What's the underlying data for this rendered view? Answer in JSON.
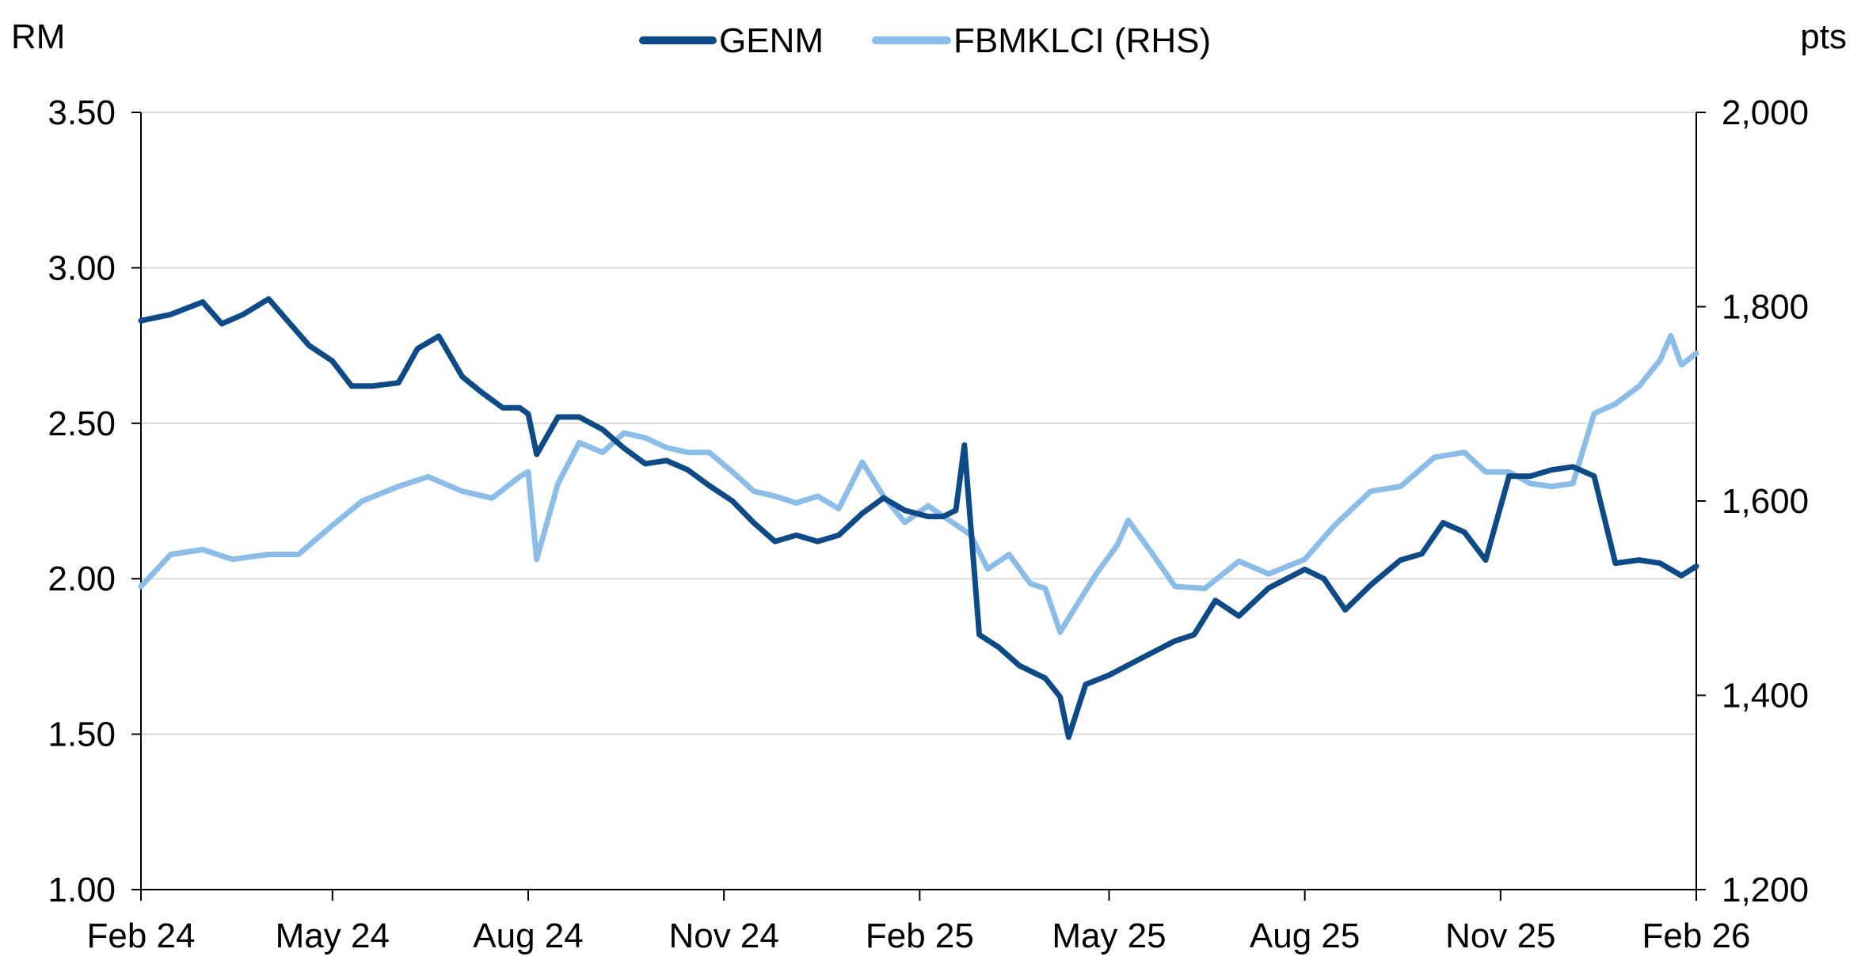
{
  "chart_data": {
    "type": "line",
    "left_axis": {
      "unit": "RM",
      "ylim": [
        1.0,
        3.5
      ],
      "ticks": [
        "1.00",
        "1.50",
        "2.00",
        "2.50",
        "3.00",
        "3.50"
      ]
    },
    "right_axis": {
      "unit": "pts",
      "ylim": [
        1200,
        2000
      ],
      "ticks": [
        "1,200",
        "1,400",
        "1,600",
        "1,800",
        "2,000"
      ]
    },
    "x_tick_labels": [
      "Feb 24",
      "May 24",
      "Aug 24",
      "Nov 24",
      "Feb 25",
      "May 25",
      "Aug 25",
      "Nov 25",
      "Feb 26"
    ],
    "grid": "horizontal",
    "legend_position": "top",
    "series": [
      {
        "name": "GENM",
        "axis": "left",
        "color": "#0e4a86",
        "x": [
          "2024-02-01",
          "2024-02-15",
          "2024-03-01",
          "2024-03-10",
          "2024-03-20",
          "2024-04-01",
          "2024-04-20",
          "2024-05-01",
          "2024-05-10",
          "2024-05-20",
          "2024-06-01",
          "2024-06-10",
          "2024-06-20",
          "2024-07-01",
          "2024-07-10",
          "2024-07-20",
          "2024-07-28",
          "2024-08-01",
          "2024-08-05",
          "2024-08-15",
          "2024-08-25",
          "2024-09-05",
          "2024-09-15",
          "2024-09-25",
          "2024-10-05",
          "2024-10-15",
          "2024-10-25",
          "2024-11-05",
          "2024-11-15",
          "2024-11-25",
          "2024-12-05",
          "2024-12-15",
          "2024-12-25",
          "2025-01-05",
          "2025-01-15",
          "2025-01-25",
          "2025-02-05",
          "2025-02-12",
          "2025-02-18",
          "2025-02-22",
          "2025-03-01",
          "2025-03-10",
          "2025-03-20",
          "2025-04-01",
          "2025-04-08",
          "2025-04-12",
          "2025-04-20",
          "2025-05-01",
          "2025-05-15",
          "2025-06-01",
          "2025-06-10",
          "2025-06-20",
          "2025-07-01",
          "2025-07-15",
          "2025-08-01",
          "2025-08-10",
          "2025-08-20",
          "2025-09-01",
          "2025-09-15",
          "2025-09-25",
          "2025-10-05",
          "2025-10-15",
          "2025-10-25",
          "2025-11-05",
          "2025-11-15",
          "2025-11-25",
          "2025-12-05",
          "2025-12-15",
          "2025-12-25",
          "2026-01-05",
          "2026-01-15",
          "2026-01-25",
          "2026-02-01"
        ],
        "values": [
          2.83,
          2.85,
          2.89,
          2.82,
          2.85,
          2.9,
          2.75,
          2.7,
          2.62,
          2.62,
          2.63,
          2.74,
          2.78,
          2.65,
          2.6,
          2.55,
          2.55,
          2.53,
          2.4,
          2.52,
          2.52,
          2.48,
          2.42,
          2.37,
          2.38,
          2.35,
          2.3,
          2.25,
          2.18,
          2.12,
          2.14,
          2.12,
          2.14,
          2.21,
          2.26,
          2.22,
          2.2,
          2.2,
          2.22,
          2.43,
          1.82,
          1.78,
          1.72,
          1.68,
          1.62,
          1.49,
          1.66,
          1.69,
          1.74,
          1.8,
          1.82,
          1.93,
          1.88,
          1.97,
          2.03,
          2.0,
          1.9,
          1.98,
          2.06,
          2.08,
          2.18,
          2.15,
          2.06,
          2.33,
          2.33,
          2.35,
          2.36,
          2.33,
          2.05,
          2.06,
          2.05,
          2.01,
          2.04
        ]
      },
      {
        "name": "FBMKLCI (RHS)",
        "axis": "right",
        "color": "#8cbde8",
        "x": [
          "2024-02-01",
          "2024-02-15",
          "2024-03-01",
          "2024-03-15",
          "2024-04-01",
          "2024-04-15",
          "2024-05-01",
          "2024-05-15",
          "2024-06-01",
          "2024-06-15",
          "2024-07-01",
          "2024-07-15",
          "2024-07-28",
          "2024-08-01",
          "2024-08-05",
          "2024-08-15",
          "2024-08-25",
          "2024-09-05",
          "2024-09-15",
          "2024-09-25",
          "2024-10-05",
          "2024-10-15",
          "2024-10-25",
          "2024-11-05",
          "2024-11-15",
          "2024-11-25",
          "2024-12-05",
          "2024-12-15",
          "2024-12-25",
          "2025-01-05",
          "2025-01-15",
          "2025-01-25",
          "2025-02-05",
          "2025-02-15",
          "2025-02-25",
          "2025-03-05",
          "2025-03-15",
          "2025-03-25",
          "2025-04-01",
          "2025-04-08",
          "2025-04-15",
          "2025-04-25",
          "2025-05-05",
          "2025-05-10",
          "2025-05-20",
          "2025-06-01",
          "2025-06-15",
          "2025-07-01",
          "2025-07-15",
          "2025-08-01",
          "2025-08-15",
          "2025-09-01",
          "2025-09-15",
          "2025-10-01",
          "2025-10-15",
          "2025-10-25",
          "2025-11-05",
          "2025-11-15",
          "2025-11-25",
          "2025-12-05",
          "2025-12-15",
          "2025-12-25",
          "2026-01-05",
          "2026-01-15",
          "2026-01-20",
          "2026-01-25",
          "2026-02-01"
        ],
        "values": [
          1512,
          1545,
          1550,
          1540,
          1545,
          1545,
          1575,
          1600,
          1615,
          1625,
          1610,
          1603,
          1625,
          1630,
          1540,
          1618,
          1660,
          1650,
          1670,
          1665,
          1655,
          1650,
          1650,
          1630,
          1610,
          1605,
          1598,
          1605,
          1592,
          1640,
          1605,
          1578,
          1595,
          1580,
          1565,
          1530,
          1545,
          1515,
          1510,
          1465,
          1490,
          1525,
          1555,
          1580,
          1550,
          1512,
          1510,
          1538,
          1525,
          1540,
          1575,
          1610,
          1615,
          1645,
          1650,
          1630,
          1630,
          1618,
          1615,
          1618,
          1690,
          1700,
          1718,
          1745,
          1770,
          1740,
          1752
        ]
      }
    ]
  }
}
